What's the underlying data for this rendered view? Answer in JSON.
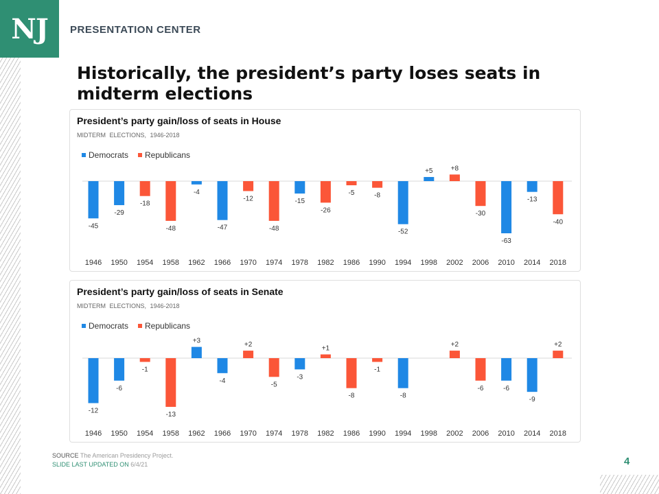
{
  "header": {
    "logo_text": "NJ",
    "center_label": "PRESENTATION CENTER"
  },
  "slide_title": "Historically, the president’s party loses seats in midterm elections",
  "colors": {
    "democrats": "#1f88e5",
    "republicans": "#fb5638",
    "accent": "#2f8f73"
  },
  "footer": {
    "source_label": "SOURCE",
    "source_text": "The American Presidency Project.",
    "updated_label": "SLIDE LAST UPDATED ON",
    "updated_date": "6/4/21",
    "page_number": "4"
  },
  "chart_data": [
    {
      "type": "bar",
      "title": "President’s party gain/loss of seats in House",
      "subtitle": "MIDTERM ELECTIONS, 1946-2018",
      "legend": [
        "Democrats",
        "Republicans"
      ],
      "legend_position": "top-left",
      "grid": false,
      "categories": [
        "1946",
        "1950",
        "1954",
        "1958",
        "1962",
        "1966",
        "1970",
        "1974",
        "1978",
        "1982",
        "1986",
        "1990",
        "1994",
        "1998",
        "2002",
        "2006",
        "2010",
        "2014",
        "2018"
      ],
      "values": [
        -45,
        -29,
        -18,
        -48,
        -4,
        -47,
        -12,
        -48,
        -15,
        -26,
        -5,
        -8,
        -52,
        5,
        8,
        -30,
        -63,
        -13,
        -40
      ],
      "labels": [
        "-45",
        "-29",
        "-18",
        "-48",
        "-4",
        "-47",
        "-12",
        "-48",
        "-15",
        "-26",
        "-5",
        "-8",
        "-52",
        "+5",
        "+8",
        "-30",
        "-63",
        "-13",
        "-40"
      ],
      "party": [
        "Democrats",
        "Democrats",
        "Republicans",
        "Republicans",
        "Democrats",
        "Democrats",
        "Republicans",
        "Republicans",
        "Democrats",
        "Republicans",
        "Republicans",
        "Republicans",
        "Democrats",
        "Democrats",
        "Republicans",
        "Republicans",
        "Democrats",
        "Democrats",
        "Republicans"
      ],
      "ylim": [
        -63,
        8
      ]
    },
    {
      "type": "bar",
      "title": "President’s party gain/loss of seats in Senate",
      "subtitle": "MIDTERM ELECTIONS, 1946-2018",
      "legend": [
        "Democrats",
        "Republicans"
      ],
      "legend_position": "top-left",
      "grid": false,
      "categories": [
        "1946",
        "1950",
        "1954",
        "1958",
        "1962",
        "1966",
        "1970",
        "1974",
        "1978",
        "1982",
        "1986",
        "1990",
        "1994",
        "1998",
        "2002",
        "2006",
        "2010",
        "2014",
        "2018"
      ],
      "values": [
        -12,
        -6,
        -1,
        -13,
        3,
        -4,
        2,
        -5,
        -3,
        1,
        -8,
        -1,
        -8,
        0,
        2,
        -6,
        -6,
        -9,
        2
      ],
      "labels": [
        "-12",
        "-6",
        "-1",
        "-13",
        "+3",
        "-4",
        "+2",
        "-5",
        "-3",
        "+1",
        "-8",
        "-1",
        "-8",
        "",
        "+2",
        "-6",
        "-6",
        "-9",
        "+2"
      ],
      "party": [
        "Democrats",
        "Democrats",
        "Republicans",
        "Republicans",
        "Democrats",
        "Democrats",
        "Republicans",
        "Republicans",
        "Democrats",
        "Republicans",
        "Republicans",
        "Republicans",
        "Democrats",
        "Democrats",
        "Republicans",
        "Republicans",
        "Democrats",
        "Democrats",
        "Republicans"
      ],
      "ylim": [
        -13,
        3
      ]
    }
  ]
}
